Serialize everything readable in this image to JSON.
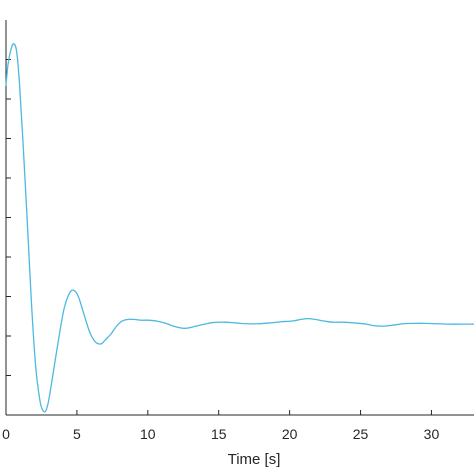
{
  "chart_data": {
    "type": "line",
    "xlabel": "Time [s]",
    "ylabel": "",
    "title": "",
    "xlim": [
      0,
      33
    ],
    "ylim": [
      0,
      10
    ],
    "x_ticks": [
      0,
      5,
      10,
      15,
      20,
      25,
      30
    ],
    "y_tick_count": 9,
    "grid": false,
    "series": [
      {
        "color": "#4db8e0",
        "x": [
          0,
          0.15,
          0.35,
          0.55,
          0.75,
          0.95,
          1.2,
          1.5,
          1.8,
          2.1,
          2.4,
          2.6,
          2.8,
          3.0,
          3.3,
          3.7,
          4.1,
          4.5,
          4.8,
          5.1,
          5.5,
          5.9,
          6.3,
          6.7,
          7.0,
          7.4,
          7.8,
          8.2,
          8.6,
          9.0,
          9.5,
          10.0,
          10.6,
          11.2,
          11.8,
          12.4,
          12.8,
          13.4,
          14.0,
          14.6,
          15.4,
          16.2,
          17.0,
          17.8,
          18.6,
          19.4,
          20.2,
          20.8,
          21.3,
          21.8,
          22.4,
          23.0,
          23.8,
          24.6,
          25.4,
          26.0,
          26.6,
          27.2,
          28.0,
          28.8,
          29.6,
          30.4,
          31.2,
          32.0,
          33.0
        ],
        "y": [
          8.35,
          8.9,
          9.25,
          9.4,
          9.2,
          8.4,
          6.9,
          4.9,
          2.8,
          1.2,
          0.35,
          0.12,
          0.1,
          0.35,
          1.0,
          1.9,
          2.7,
          3.1,
          3.15,
          3.0,
          2.55,
          2.1,
          1.85,
          1.8,
          1.9,
          2.05,
          2.25,
          2.38,
          2.42,
          2.42,
          2.4,
          2.4,
          2.38,
          2.33,
          2.25,
          2.2,
          2.2,
          2.25,
          2.3,
          2.34,
          2.35,
          2.33,
          2.31,
          2.31,
          2.33,
          2.36,
          2.38,
          2.42,
          2.44,
          2.42,
          2.38,
          2.35,
          2.35,
          2.33,
          2.3,
          2.26,
          2.25,
          2.27,
          2.31,
          2.32,
          2.32,
          2.31,
          2.3,
          2.3,
          2.3
        ]
      }
    ]
  }
}
